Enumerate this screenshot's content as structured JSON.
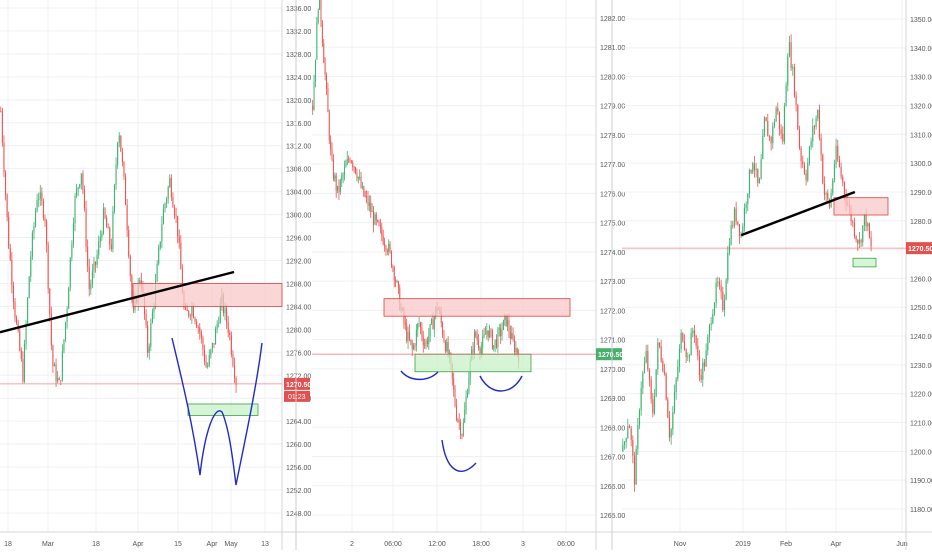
{
  "colors": {
    "up": "#26a69a",
    "up_body": "#3cb371",
    "down": "#ef5350",
    "grid": "#eef0f3",
    "axis_text": "#555555",
    "price_line": "#ef5350",
    "resistance_fill": "#f8c8c8",
    "resistance_stroke": "#e04040",
    "support_fill": "#c8f0c8",
    "support_stroke": "#40a040",
    "trendline": "#000000",
    "pattern": "#1f2ac8",
    "green_tag": "#48b068",
    "red_tag": "#e35050"
  },
  "chart_data": [
    {
      "type": "candlestick",
      "xlabel": "",
      "ylabel": "",
      "ylim": [
        1245,
        1340
      ],
      "yticks": [
        "1248.00",
        "1252.00",
        "1256.00",
        "1260.00",
        "1264.00",
        "1268.00",
        "1272.00",
        "1276.00",
        "1280.00",
        "1284.00",
        "1288.00",
        "1292.00",
        "1296.00",
        "1300.00",
        "1304.00",
        "1308.00",
        "1312.00",
        "1316.00",
        "1320.00",
        "1324.00",
        "1328.00",
        "1332.00",
        "1336.00"
      ],
      "xticks": [
        "18",
        "Mar",
        "18",
        "Apr",
        "15",
        "Apr",
        "May",
        "13"
      ],
      "last_price": "1270.50",
      "last_price_value": 1270.5,
      "countdown": "01:23",
      "grid": true,
      "x": [
        "Feb 18",
        "Mar",
        "Mar 18",
        "Apr",
        "Apr 15",
        "Apr (late)",
        "May",
        "May 13"
      ],
      "close_path": [
        1318,
        1296,
        1282,
        1272,
        1292,
        1304,
        1300,
        1274,
        1270,
        1284,
        1302,
        1308,
        1287,
        1292,
        1300,
        1294,
        1316,
        1302,
        1282,
        1290,
        1276,
        1287,
        1300,
        1306,
        1298,
        1282,
        1284,
        1280,
        1273,
        1278,
        1285,
        1280,
        1271
      ],
      "zones": [
        {
          "kind": "resistance",
          "price_from": 1284,
          "price_to": 1288
        },
        {
          "kind": "support",
          "price_from": 1265,
          "price_to": 1267
        }
      ],
      "trendline": {
        "from": [
          0,
          1279.5
        ],
        "to": [
          0.83,
          1290
        ]
      },
      "pattern": "double-bottom"
    },
    {
      "type": "candlestick",
      "xlabel": "",
      "ylabel": "",
      "ylim": [
        1264.6,
        1282.8
      ],
      "yticks": [
        "1265.00",
        "1266.00",
        "1267.00",
        "1268.00",
        "1269.00",
        "1270.00",
        "1271.00",
        "1272.00",
        "1273.00",
        "1274.00",
        "1275.00",
        "1276.00",
        "1277.00",
        "1278.00",
        "1279.00",
        "1280.00",
        "1281.00",
        "1282.00"
      ],
      "xticks": [
        "2",
        "06:00",
        "12:00",
        "18:00",
        "3",
        "06:00"
      ],
      "last_price": "1270.50",
      "last_price_value": 1270.5,
      "grid": true,
      "x": [
        "2",
        "06:00",
        "12:00",
        "18:00",
        "3",
        "06:00"
      ],
      "close_path": [
        1279,
        1283,
        1280,
        1277,
        1276,
        1276.7,
        1277.3,
        1276.8,
        1276,
        1275.6,
        1275,
        1274.6,
        1274.2,
        1273.4,
        1272.2,
        1271.2,
        1270.6,
        1271.6,
        1270.8,
        1271.4,
        1272.2,
        1271.1,
        1270.2,
        1268.5,
        1267.8,
        1269.8,
        1271.2,
        1270.7,
        1271.4,
        1270.8,
        1271.2,
        1271.7,
        1270.9,
        1270.5
      ],
      "zones": [
        {
          "kind": "resistance",
          "price_from": 1271.8,
          "price_to": 1272.4
        },
        {
          "kind": "support",
          "price_from": 1269.9,
          "price_to": 1270.5
        }
      ],
      "pattern": "inverse-head-and-shoulders"
    },
    {
      "type": "candlestick",
      "xlabel": "",
      "ylabel": "",
      "ylim": [
        1174,
        1356
      ],
      "yticks": [
        "1180.00",
        "1190.00",
        "1200.00",
        "1210.00",
        "1220.00",
        "1230.00",
        "1240.00",
        "1250.00",
        "1260.00",
        "1270.00",
        "1280.00",
        "1290.00",
        "1300.00",
        "1310.00",
        "1320.00",
        "1330.00",
        "1340.00",
        "1350.00"
      ],
      "xticks": [
        "Nov",
        "2019",
        "Feb",
        "Apr",
        "Jun"
      ],
      "last_price": "1270.50",
      "last_price_value": 1270.5,
      "grid": true,
      "x": [
        "Nov",
        "2019",
        "Feb",
        "Apr",
        "Jun"
      ],
      "close_path": [
        1200,
        1212,
        1190,
        1222,
        1234,
        1212,
        1238,
        1228,
        1204,
        1224,
        1242,
        1232,
        1244,
        1226,
        1232,
        1248,
        1258,
        1250,
        1274,
        1283,
        1275,
        1290,
        1302,
        1290,
        1315,
        1307,
        1320,
        1306,
        1343,
        1327,
        1303,
        1296,
        1310,
        1318,
        1290,
        1285,
        1304,
        1295,
        1286,
        1278,
        1272,
        1282,
        1270
      ],
      "zones": [
        {
          "kind": "resistance",
          "price_from": 1282,
          "price_to": 1288
        },
        {
          "kind": "support",
          "price_from": 1264,
          "price_to": 1267
        }
      ],
      "trendline": {
        "from": [
          0.42,
          1275
        ],
        "to": [
          0.82,
          1290
        ]
      }
    }
  ]
}
